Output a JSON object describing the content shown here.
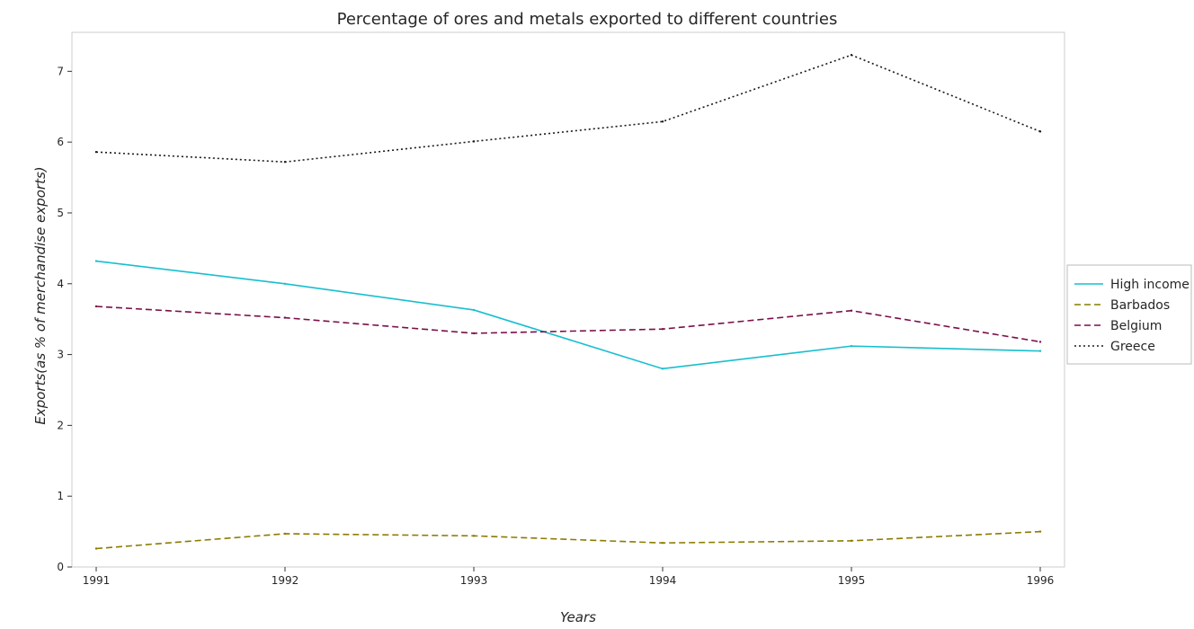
{
  "chart_data": {
    "type": "line",
    "title": "Percentage of ores and metals exported to different countries",
    "xlabel": "Years",
    "ylabel": "Exports(as % of merchandise exports)",
    "x": [
      "1991",
      "1992",
      "1993",
      "1994",
      "1995",
      "1996"
    ],
    "ylim": [
      0,
      7.55
    ],
    "yticks": [
      "0",
      "1",
      "2",
      "3",
      "4",
      "5",
      "6",
      "7"
    ],
    "grid": false,
    "legend_position": "right",
    "series": [
      {
        "name": "High income",
        "color": "#17becf",
        "dash": "solid",
        "values": [
          4.32,
          4.0,
          3.63,
          2.8,
          3.12,
          3.05
        ]
      },
      {
        "name": "Barbados",
        "color": "#8c7b00",
        "dash": "dashed",
        "values": [
          0.26,
          0.47,
          0.44,
          0.34,
          0.37,
          0.5
        ]
      },
      {
        "name": "Belgium",
        "color": "#7a0f4a",
        "dash": "dashed",
        "values": [
          3.68,
          3.52,
          3.3,
          3.36,
          3.62,
          3.18
        ]
      },
      {
        "name": "Greece",
        "color": "#1a1a1a",
        "dash": "dotted",
        "values": [
          5.86,
          5.72,
          6.01,
          6.29,
          7.23,
          6.15
        ]
      }
    ]
  }
}
